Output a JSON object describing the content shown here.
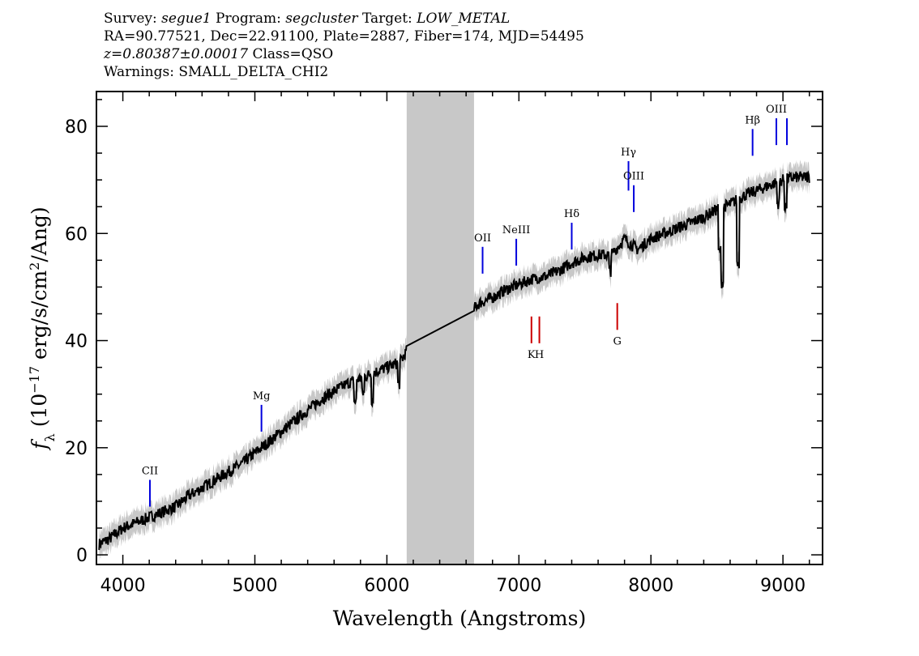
{
  "header": {
    "survey_label": "Survey:",
    "survey": "segue1",
    "program_label": "Program:",
    "program": "segcluster",
    "target_label": "Target:",
    "target": "LOW_METAL",
    "line2": "RA=90.77521, Dec=22.91100, Plate=2887, Fiber=174, MJD=54495",
    "redshift": "z=0.80387±0.00017",
    "class": "Class=QSO",
    "warnings": "Warnings: SMALL_DELTA_CHI2"
  },
  "chart_data": {
    "type": "line",
    "xlabel": "Wavelength (Angstroms)",
    "ylabel_prefix": "f",
    "ylabel_sub": "λ",
    "ylabel_mid": "(10",
    "ylabel_exp": "−17",
    "ylabel_mid2": "erg/s/cm",
    "ylabel_exp2": "2",
    "ylabel_end": "/Ang)",
    "xlim": [
      3800,
      9300
    ],
    "ylim": [
      -1.8,
      86.5
    ],
    "x_ticks": [
      4000,
      5000,
      6000,
      7000,
      8000,
      9000
    ],
    "x_tick_labels": [
      "4000",
      "5000",
      "6000",
      "7000",
      "8000",
      "9000"
    ],
    "y_ticks": [
      0,
      20,
      40,
      60,
      80
    ],
    "y_tick_labels": [
      "0",
      "20",
      "40",
      "60",
      "80"
    ],
    "masked_region": [
      6150,
      6660
    ],
    "series": [
      {
        "color": "#000000",
        "x": [
          3820,
          3900,
          4000,
          4100,
          4200,
          4300,
          4400,
          4500,
          4600,
          4700,
          4800,
          4900,
          5000,
          5100,
          5200,
          5300,
          5400,
          5500,
          5600,
          5700,
          5800,
          5900,
          6000,
          6100,
          6150,
          6660,
          6700,
          6800,
          6900,
          7000,
          7100,
          7200,
          7300,
          7400,
          7500,
          7600,
          7700,
          7800,
          7900,
          8000,
          8100,
          8200,
          8300,
          8400,
          8500,
          8600,
          8700,
          8800,
          8900,
          9000,
          9100,
          9200
        ],
        "y": [
          2,
          3,
          5,
          6,
          7,
          8,
          9,
          11,
          12.5,
          14,
          15.5,
          17,
          19,
          21,
          23,
          25,
          27,
          29,
          30.5,
          32,
          33,
          34,
          35,
          36,
          38,
          46,
          47,
          48,
          49.5,
          50.5,
          51.5,
          52,
          53,
          54.5,
          55.5,
          56,
          56,
          59,
          57,
          59,
          60,
          61,
          62,
          63,
          64.5,
          65.5,
          67,
          68,
          69,
          70,
          70.5,
          70.5
        ]
      }
    ],
    "line_markers": [
      {
        "label": "CII",
        "x": 4205,
        "y1": 9.0,
        "y2": 14.0,
        "color": "#0000dd",
        "side": "top"
      },
      {
        "label": "Mg",
        "x": 5050,
        "y1": 23.0,
        "y2": 28.0,
        "color": "#0000dd",
        "side": "top"
      },
      {
        "label": "OII",
        "x": 6725,
        "y1": 52.5,
        "y2": 57.5,
        "color": "#0000dd",
        "side": "top"
      },
      {
        "label": "NeIII",
        "x": 6980,
        "y1": 54.0,
        "y2": 59.0,
        "color": "#0000dd",
        "side": "top"
      },
      {
        "label": "Hδ",
        "x": 7400,
        "y1": 57.0,
        "y2": 62.0,
        "color": "#0000dd",
        "side": "top"
      },
      {
        "label": "Hγ",
        "x": 7830,
        "y1": 68.0,
        "y2": 73.5,
        "color": "#0000dd",
        "side": "top"
      },
      {
        "label": "OIII",
        "x": 7870,
        "y1": 64.0,
        "y2": 69.0,
        "color": "#0000dd",
        "side": "top"
      },
      {
        "label": "Hβ",
        "x": 8770,
        "y1": 74.5,
        "y2": 79.5,
        "color": "#0000dd",
        "side": "top"
      },
      {
        "label": "OIII",
        "x": 8950,
        "y1": 76.5,
        "y2": 81.5,
        "color": "#0000dd",
        "side": "top"
      },
      {
        "label": "",
        "x": 9030,
        "y1": 76.5,
        "y2": 81.5,
        "color": "#0000dd",
        "side": "top"
      },
      {
        "label": "K",
        "x": 7095,
        "y1": 39.5,
        "y2": 44.5,
        "color": "#cc0000",
        "side": "bottom"
      },
      {
        "label": "H",
        "x": 7155,
        "y1": 39.5,
        "y2": 44.5,
        "color": "#cc0000",
        "side": "bottom"
      },
      {
        "label": "G",
        "x": 7745,
        "y1": 42.0,
        "y2": 47.0,
        "color": "#cc0000",
        "side": "bottom"
      }
    ],
    "colors": {
      "spectrum": "#000000",
      "error_band": "#c8c8c8",
      "mask": "#c8c8c8",
      "emission": "#0000dd",
      "absorption": "#cc0000"
    }
  }
}
